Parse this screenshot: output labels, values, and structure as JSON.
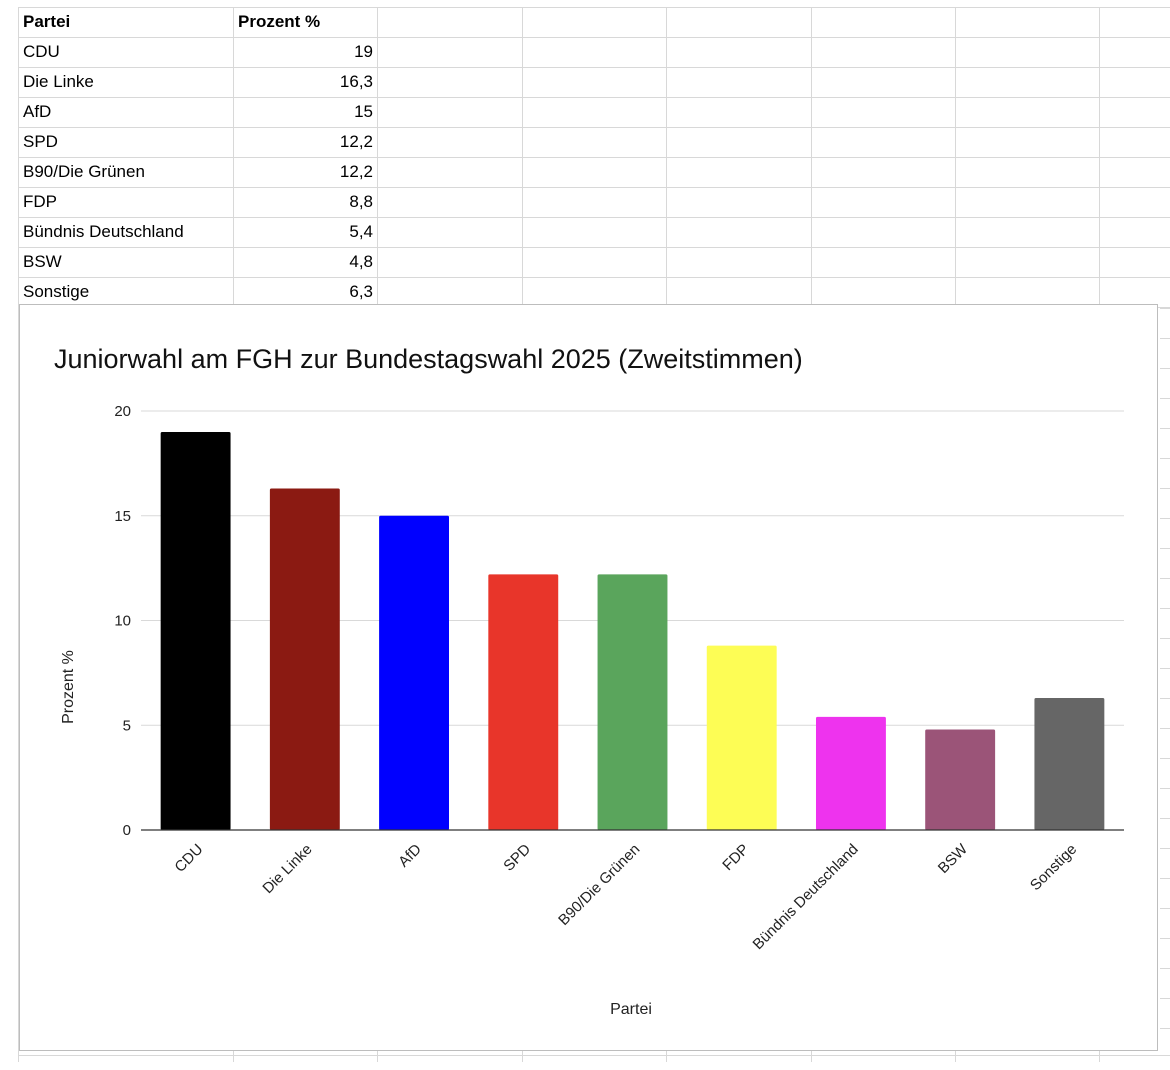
{
  "table": {
    "headers": [
      "Partei",
      "Prozent %"
    ],
    "rows": [
      [
        "CDU",
        "19"
      ],
      [
        "Die Linke",
        "16,3"
      ],
      [
        "AfD",
        "15"
      ],
      [
        "SPD",
        "12,2"
      ],
      [
        "B90/Die Grünen",
        "12,2"
      ],
      [
        "FDP",
        "8,8"
      ],
      [
        "Bündnis Deutschland",
        "5,4"
      ],
      [
        "BSW",
        "4,8"
      ],
      [
        "Sonstige",
        "6,3"
      ]
    ]
  },
  "chart_data": {
    "type": "bar",
    "title": "Juniorwahl am FGH zur Bundestagswahl 2025 (Zweitstimmen)",
    "xlabel": "Partei",
    "ylabel": "Prozent %",
    "categories": [
      "CDU",
      "Die Linke",
      "AfD",
      "SPD",
      "B90/Die Grünen",
      "FDP",
      "Bündnis Deutschland",
      "BSW",
      "Sonstige"
    ],
    "values": [
      19,
      16.3,
      15,
      12.2,
      12.2,
      8.8,
      5.4,
      4.8,
      6.3
    ],
    "colors": [
      "#000000",
      "#8b1a12",
      "#0000ff",
      "#e8352a",
      "#5aa55c",
      "#fdfd55",
      "#ee33ee",
      "#9b5478",
      "#666666"
    ],
    "ylim": [
      0,
      20
    ],
    "yticks": [
      "0",
      "5",
      "10",
      "15",
      "20"
    ],
    "grid": true,
    "legend": "none"
  }
}
